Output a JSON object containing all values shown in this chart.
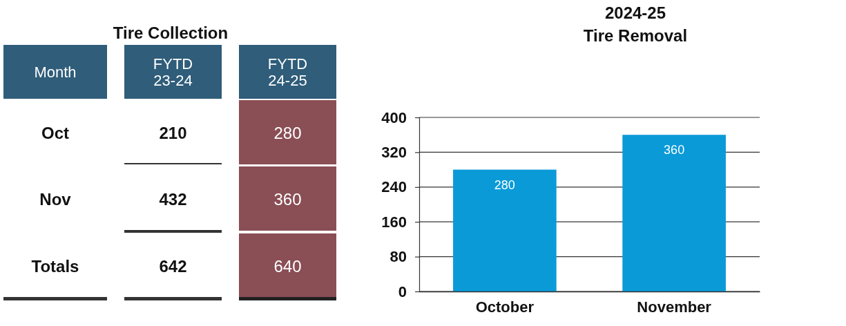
{
  "chart_data": [
    {
      "type": "other",
      "title": "Tire Collection",
      "xlabel": "Month",
      "categories": [
        "Oct",
        "Nov",
        "Totals"
      ],
      "series": [
        {
          "name": "FYTD 23-24",
          "values": [
            210,
            432,
            642
          ]
        },
        {
          "name": "FYTD 24-25",
          "color": "#8a4e55",
          "values": [
            280,
            360,
            640
          ]
        }
      ],
      "data_labels": true
    },
    {
      "type": "bar",
      "title": "2024-25",
      "subtitle": "Tire Removal",
      "categories": [
        "October",
        "November"
      ],
      "values": [
        280,
        360
      ],
      "color": "#0a9ad8",
      "ylim": [
        0,
        400
      ],
      "yticks": [
        0,
        80,
        160,
        240,
        320,
        400
      ],
      "grid": "y",
      "data_labels": true
    }
  ]
}
